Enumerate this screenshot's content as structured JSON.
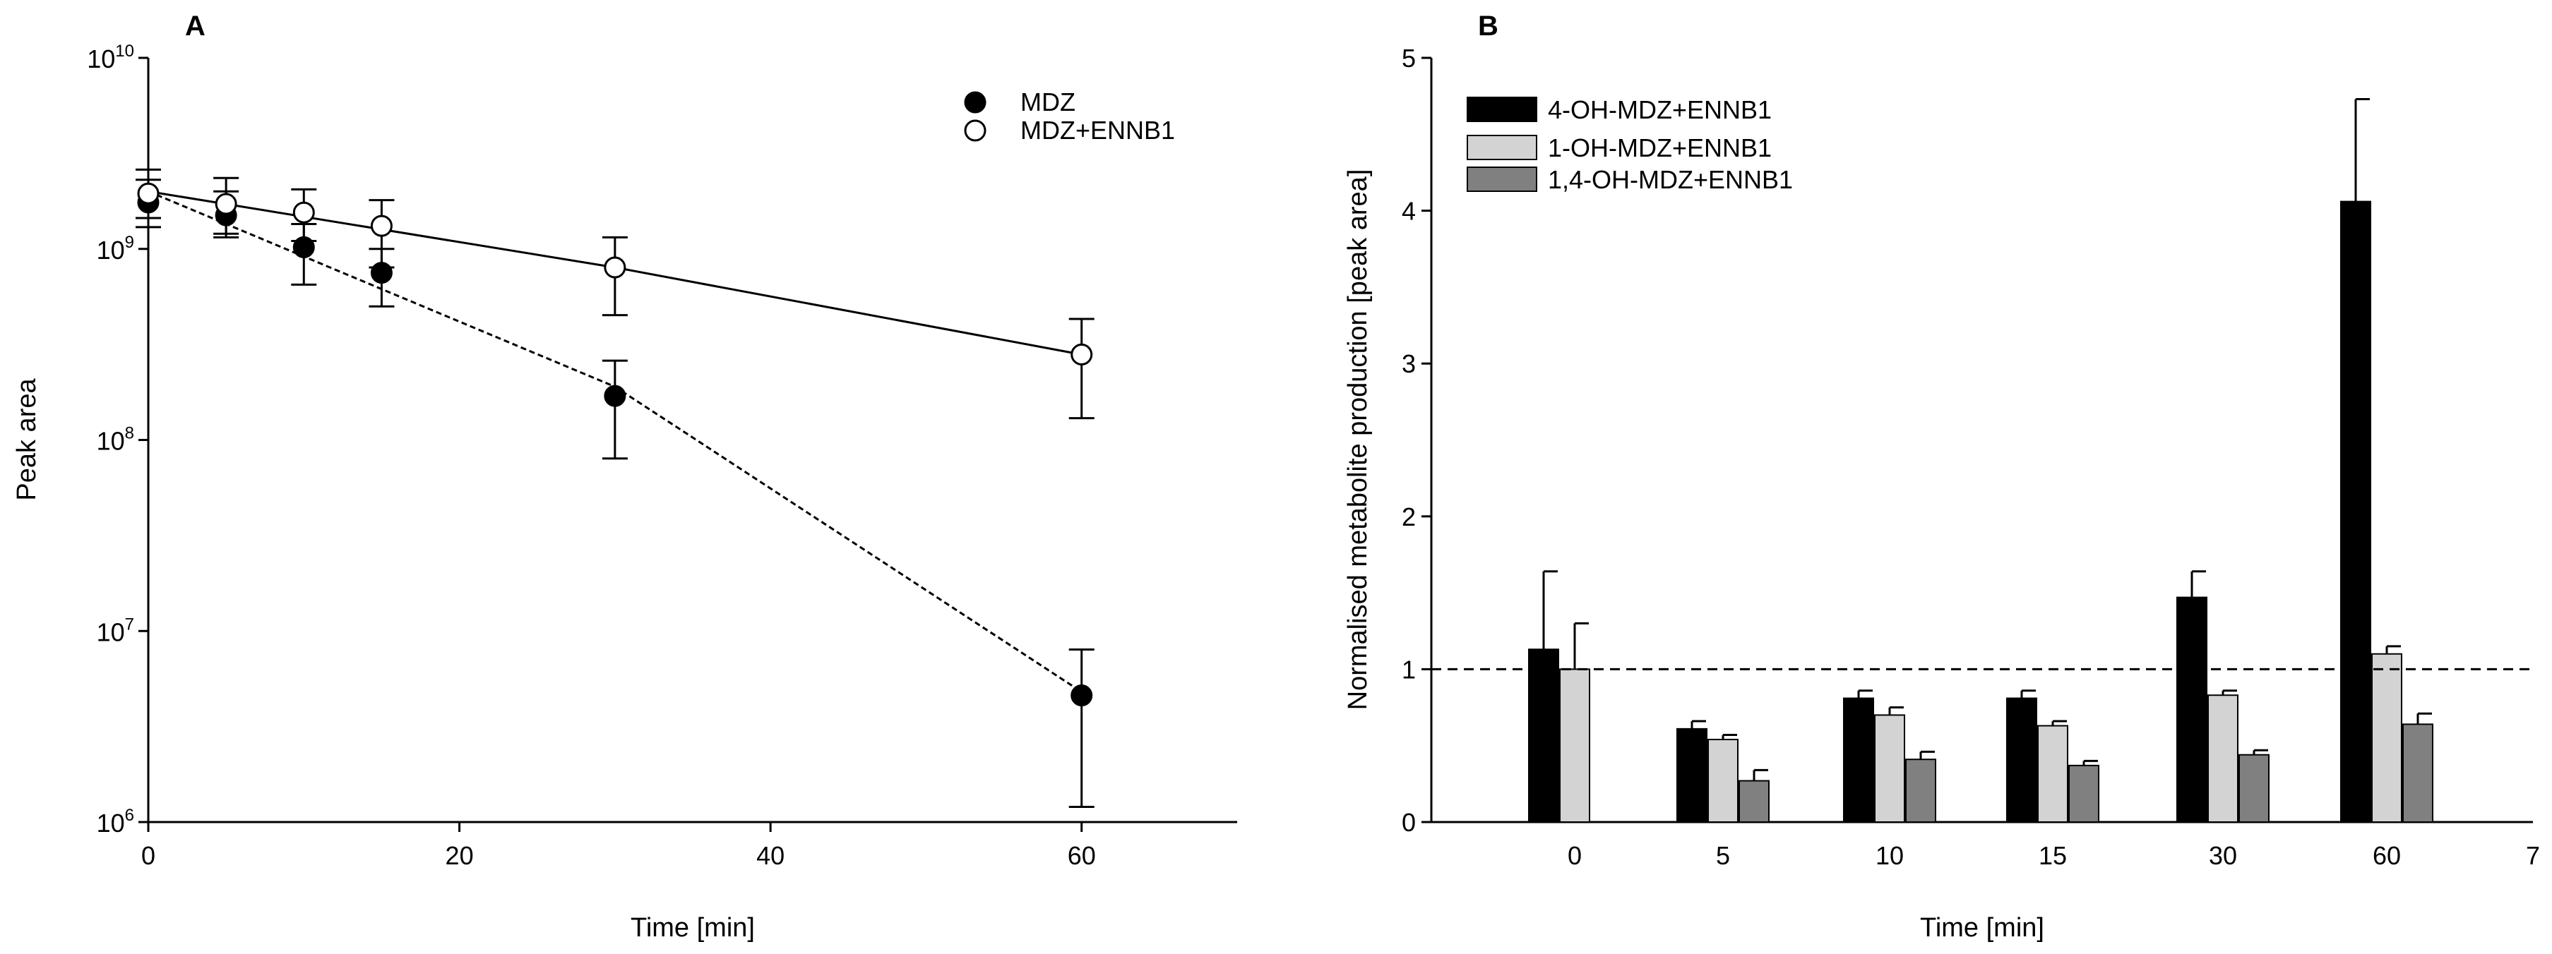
{
  "chart_data": [
    {
      "panel": "A",
      "type": "scatter",
      "title": "A",
      "xlabel": "Time [min]",
      "ylabel": "Peak area",
      "xlim": [
        0,
        70
      ],
      "ylim": [
        1000000,
        10000000000
      ],
      "yscale": "log",
      "xticks": [
        0,
        20,
        40,
        60
      ],
      "yticks": [
        {
          "value": 1000000,
          "base": "10",
          "exp": "6"
        },
        {
          "value": 10000000,
          "base": "10",
          "exp": "7"
        },
        {
          "value": 100000000,
          "base": "10",
          "exp": "8"
        },
        {
          "value": 1000000000,
          "base": "10",
          "exp": "9"
        },
        {
          "value": 10000000000,
          "base": "10",
          "exp": "10"
        }
      ],
      "legend_position": "top-right",
      "series": [
        {
          "name": "MDZ",
          "marker": "filled-circle",
          "fit_line": "dashed",
          "x": [
            0,
            5,
            10,
            15,
            30,
            60
          ],
          "y": [
            1750000000,
            1500000000,
            1020000000,
            750000000,
            170000000,
            4600000
          ],
          "err_low": [
            1300000000,
            1150000000,
            650000000,
            500000000,
            80000000,
            1200000
          ],
          "err_high": [
            2300000000,
            2000000000,
            1350000000,
            1000000000,
            260000000,
            8000000
          ],
          "fit_x": [
            0,
            30,
            60
          ],
          "fit_y": [
            2000000000,
            190000000,
            4800000
          ]
        },
        {
          "name": "MDZ+ENNB1",
          "marker": "open-circle",
          "fit_line": "solid",
          "x": [
            0,
            5,
            10,
            15,
            30,
            60
          ],
          "y": [
            1950000000,
            1720000000,
            1550000000,
            1320000000,
            800000000,
            280000000
          ],
          "err_low": [
            1450000000,
            1200000000,
            1100000000,
            800000000,
            450000000,
            130000000
          ],
          "err_high": [
            2600000000,
            2350000000,
            2050000000,
            1800000000,
            1150000000,
            430000000
          ],
          "fit_x": [
            0,
            30,
            60
          ],
          "fit_y": [
            2000000000,
            800000000,
            280000000
          ]
        }
      ]
    },
    {
      "panel": "B",
      "type": "bar",
      "title": "B",
      "xlabel": "Time [min]",
      "ylabel": "Normalised metabolite production [peak area]",
      "categories": [
        "0",
        "5",
        "10",
        "15",
        "30",
        "60"
      ],
      "extra_xtick": "7",
      "ylim": [
        0,
        5
      ],
      "yticks": [
        0,
        1,
        2,
        3,
        4,
        5
      ],
      "reference_line": 1,
      "legend_position": "top-left",
      "series": [
        {
          "name": "4-OH-MDZ+ENNB1",
          "color": "#000000",
          "values": [
            1.13,
            0.61,
            0.81,
            0.81,
            1.47,
            4.06
          ],
          "errors": [
            0.51,
            0.05,
            0.05,
            0.05,
            0.17,
            0.67
          ]
        },
        {
          "name": "1-OH-MDZ+ENNB1",
          "color": "#d3d3d3",
          "values": [
            1.0,
            0.54,
            0.7,
            0.63,
            0.83,
            1.1
          ],
          "errors": [
            0.3,
            0.03,
            0.05,
            0.03,
            0.03,
            0.05
          ]
        },
        {
          "name": "1,4-OH-MDZ+ENNB1",
          "color": "#808080",
          "values": [
            null,
            0.27,
            0.41,
            0.37,
            0.44,
            0.64
          ],
          "errors": [
            null,
            0.07,
            0.05,
            0.03,
            0.03,
            0.07
          ]
        }
      ]
    }
  ]
}
